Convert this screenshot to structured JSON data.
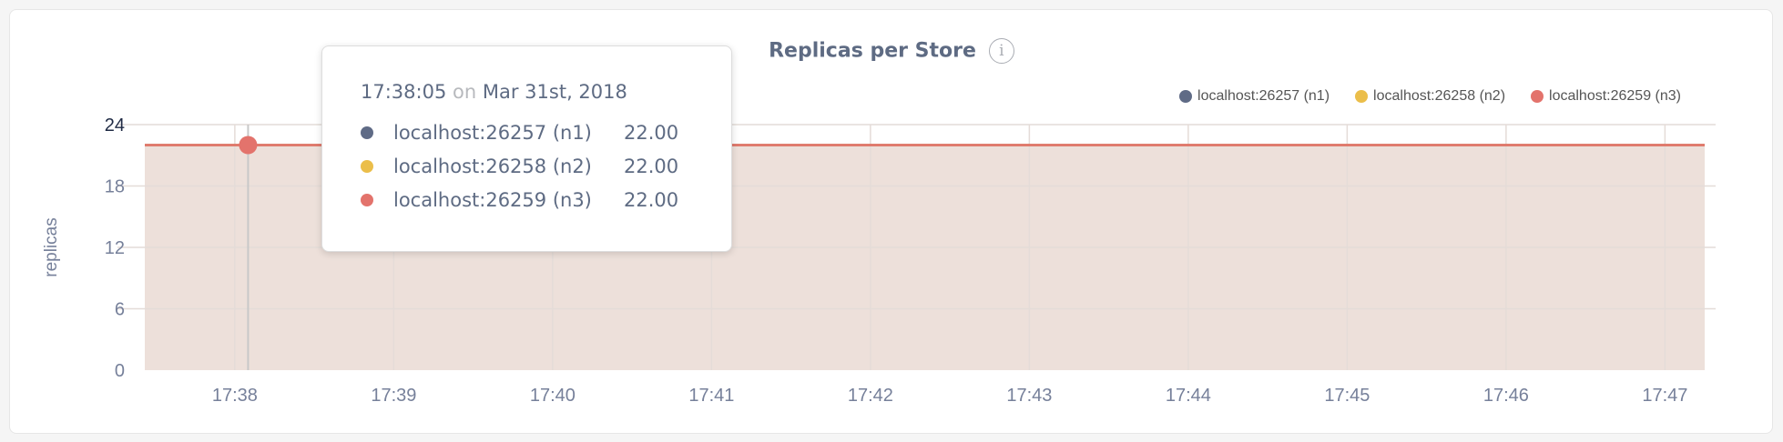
{
  "chart_data": {
    "type": "area",
    "title": "Replicas per Store",
    "ylabel": "replicas",
    "xlabel": "",
    "ylim": [
      0,
      24
    ],
    "yticks": [
      "0",
      "6",
      "12",
      "18",
      "24"
    ],
    "xlim": [
      "17:37:26",
      "17:47:15"
    ],
    "xticks": [
      "17:38",
      "17:39",
      "17:40",
      "17:41",
      "17:42",
      "17:43",
      "17:44",
      "17:45",
      "17:46",
      "17:47"
    ],
    "grid": true,
    "legend_position": "top-right",
    "series": [
      {
        "name": "localhost:26257 (n1)",
        "color": "#5f6b86",
        "x": [
          "17:37:26",
          "17:47:15"
        ],
        "values": [
          22,
          22
        ]
      },
      {
        "name": "localhost:26258 (n2)",
        "color": "#ebbe4a",
        "x": [
          "17:37:26",
          "17:47:15"
        ],
        "values": [
          22,
          22
        ]
      },
      {
        "name": "localhost:26259 (n3)",
        "color": "#e3736c",
        "x": [
          "17:37:26",
          "17:47:15"
        ],
        "values": [
          22,
          22
        ]
      }
    ],
    "fill_color": "#ede0da",
    "tooltip": {
      "time": "17:38:05",
      "on": "on",
      "date": "Mar 31st, 2018",
      "rows": [
        {
          "name": "localhost:26257 (n1)",
          "value": "22.00",
          "color": "#5f6b86"
        },
        {
          "name": "localhost:26258 (n2)",
          "value": "22.00",
          "color": "#ebbe4a"
        },
        {
          "name": "localhost:26259 (n3)",
          "value": "22.00",
          "color": "#e3736c"
        }
      ]
    },
    "info_icon": "info-circle-icon"
  }
}
